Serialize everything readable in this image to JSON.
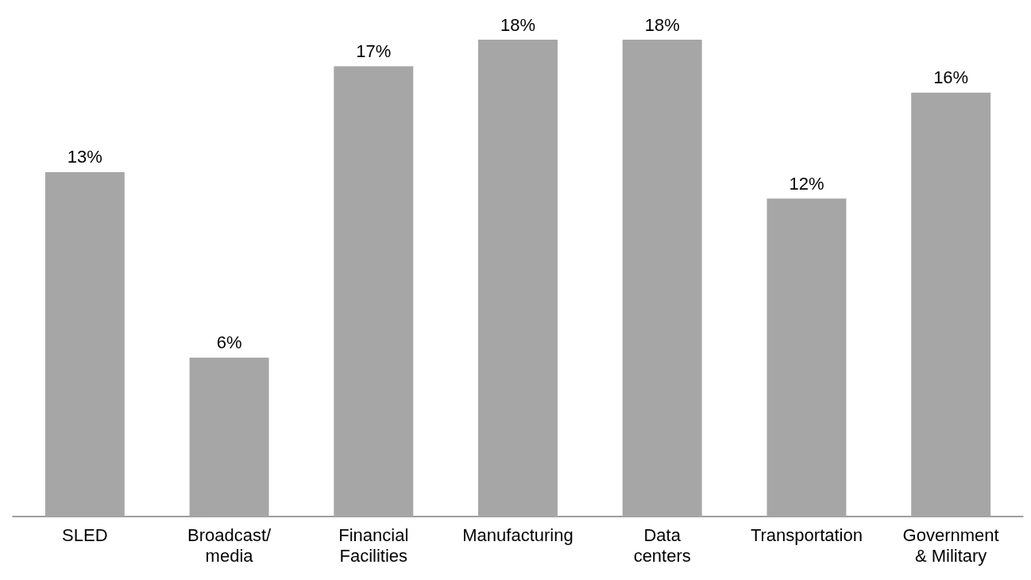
{
  "chart_data": {
    "type": "bar",
    "categories": [
      "SLED",
      "Broadcast/\nmedia",
      "Financial\nFacilities",
      "Manufacturing",
      "Data\ncenters",
      "Transportation",
      "Government\n& Military"
    ],
    "values": [
      13,
      6,
      17,
      18,
      18,
      12,
      16
    ],
    "value_labels": [
      "13%",
      "6%",
      "17%",
      "18%",
      "18%",
      "12%",
      "16%"
    ],
    "color": "#a6a6a6"
  }
}
